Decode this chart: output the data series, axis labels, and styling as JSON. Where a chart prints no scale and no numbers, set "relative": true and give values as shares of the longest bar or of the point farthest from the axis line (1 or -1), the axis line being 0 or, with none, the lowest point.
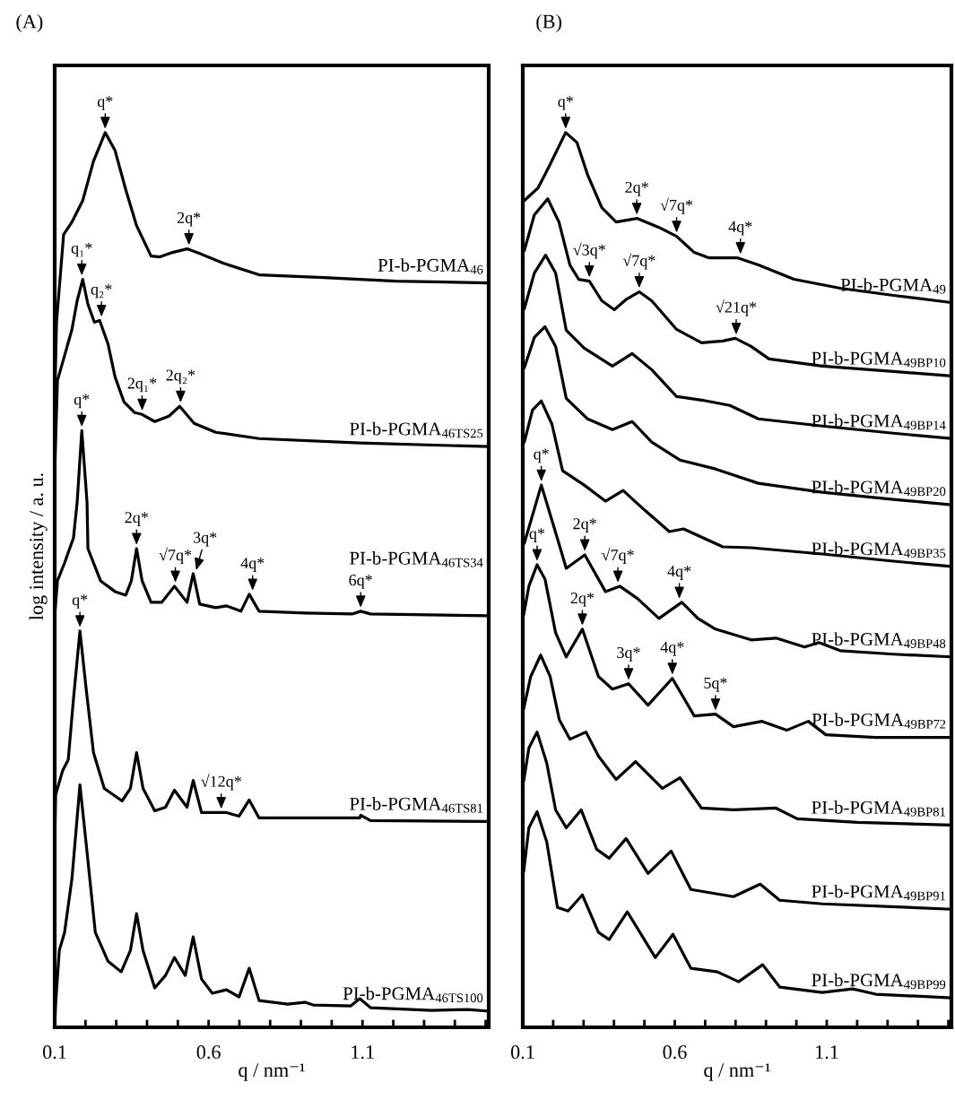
{
  "chart_data": [
    {
      "type": "line",
      "title": "(A)",
      "xlabel": "q / nm⁻¹",
      "ylabel": "log intensity / a. u.",
      "relative": true,
      "tick_labels": "x",
      "grid": false,
      "legend": false,
      "marker": "none",
      "line_style": "solid",
      "xlim": [
        0.1,
        1.51
      ],
      "xticks": [
        0.1,
        {
          "value": 0.2,
          "label": null
        },
        {
          "value": 0.3,
          "label": null
        },
        {
          "value": 0.4,
          "label": null
        },
        {
          "value": 0.5,
          "label": null
        },
        0.6,
        {
          "value": 0.7,
          "label": null
        },
        {
          "value": 0.8,
          "label": null
        },
        {
          "value": 0.9,
          "label": null
        },
        {
          "value": 1.0,
          "label": null
        },
        1.1,
        {
          "value": 1.2,
          "label": null
        },
        {
          "value": 1.3,
          "label": null
        },
        {
          "value": 1.4,
          "label": null
        },
        {
          "value": 1.5,
          "label": null
        }
      ],
      "series": [
        {
          "name": "PI-b-PGMA$_{46}$",
          "color": "#000000",
          "x": [
            0.1,
            0.106,
            0.129,
            0.156,
            0.191,
            0.226,
            0.264,
            0.296,
            0.331,
            0.366,
            0.413,
            0.442,
            0.483,
            0.53,
            0.577,
            0.647,
            0.764,
            0.974,
            1.208,
            1.51
          ],
          "values": [
            0.7,
            0.788,
            0.886,
            0.9,
            0.924,
            0.968,
            1.0,
            0.98,
            0.936,
            0.896,
            0.862,
            0.861,
            0.866,
            0.87,
            0.864,
            0.854,
            0.841,
            0.838,
            0.834,
            0.832
          ]
        },
        {
          "name": "PI-b-PGMA$_{46TS25}$",
          "color": "#000000",
          "x": [
            0.1,
            0.109,
            0.129,
            0.156,
            0.173,
            0.191,
            0.208,
            0.229,
            0.246,
            0.273,
            0.296,
            0.325,
            0.36,
            0.384,
            0.425,
            0.471,
            0.506,
            0.553,
            0.623,
            0.764,
            1.091,
            1.51
          ],
          "values": [
            0.62,
            0.723,
            0.747,
            0.78,
            0.812,
            0.836,
            0.808,
            0.788,
            0.79,
            0.764,
            0.727,
            0.699,
            0.687,
            0.685,
            0.677,
            0.683,
            0.694,
            0.675,
            0.665,
            0.658,
            0.653,
            0.649
          ]
        },
        {
          "name": "PI-b-PGMA$_{46TS34}$",
          "color": "#000000",
          "x": [
            0.1,
            0.109,
            0.132,
            0.161,
            0.173,
            0.188,
            0.205,
            0.208,
            0.249,
            0.296,
            0.331,
            0.349,
            0.366,
            0.384,
            0.413,
            0.448,
            0.489,
            0.53,
            0.55,
            0.571,
            0.623,
            0.658,
            0.705,
            0.732,
            0.764,
            0.916,
            1.068,
            1.094,
            1.126,
            1.51
          ],
          "values": [
            0.46,
            0.499,
            0.519,
            0.547,
            0.587,
            0.667,
            0.587,
            0.535,
            0.499,
            0.487,
            0.483,
            0.499,
            0.535,
            0.499,
            0.475,
            0.475,
            0.493,
            0.475,
            0.507,
            0.473,
            0.469,
            0.471,
            0.465,
            0.484,
            0.465,
            0.463,
            0.462,
            0.465,
            0.462,
            0.46
          ]
        },
        {
          "name": "PI-b-PGMA$_{46TS81}$",
          "color": "#000000",
          "x": [
            0.1,
            0.103,
            0.126,
            0.144,
            0.161,
            0.182,
            0.202,
            0.226,
            0.261,
            0.319,
            0.346,
            0.366,
            0.387,
            0.425,
            0.46,
            0.489,
            0.53,
            0.55,
            0.577,
            0.658,
            0.699,
            0.732,
            0.764,
            1.091,
            1.094,
            1.126,
            1.51
          ],
          "values": [
            0.2,
            0.26,
            0.287,
            0.299,
            0.367,
            0.443,
            0.379,
            0.307,
            0.267,
            0.253,
            0.267,
            0.307,
            0.267,
            0.242,
            0.246,
            0.265,
            0.246,
            0.276,
            0.24,
            0.24,
            0.236,
            0.254,
            0.234,
            0.234,
            0.237,
            0.231,
            0.23
          ]
        },
        {
          "name": "PI-b-PGMA$_{46TS100}$",
          "color": "#000000",
          "x": [
            0.1,
            0.103,
            0.115,
            0.132,
            0.156,
            0.182,
            0.202,
            0.232,
            0.273,
            0.316,
            0.346,
            0.366,
            0.387,
            0.425,
            0.46,
            0.489,
            0.524,
            0.55,
            0.577,
            0.612,
            0.658,
            0.699,
            0.732,
            0.764,
            0.857,
            0.913,
            0.939,
            1.062,
            1.091,
            1.126,
            1.325,
            1.442,
            1.51
          ],
          "values": [
            0.0,
            0.026,
            0.086,
            0.106,
            0.166,
            0.271,
            0.206,
            0.106,
            0.074,
            0.062,
            0.086,
            0.127,
            0.086,
            0.044,
            0.058,
            0.078,
            0.058,
            0.101,
            0.054,
            0.038,
            0.042,
            0.034,
            0.066,
            0.03,
            0.026,
            0.028,
            0.025,
            0.024,
            0.032,
            0.022,
            0.019,
            0.02,
            0.018
          ]
        }
      ],
      "annotations": [
        {
          "text": "q*",
          "x": 0.264,
          "y": 1.0
        },
        {
          "text": "2q*",
          "x": 0.536,
          "y": 0.87
        },
        {
          "text": "q₁*",
          "x": 0.188,
          "y": 0.836
        },
        {
          "text": "q₂*",
          "x": 0.252,
          "y": 0.79
        },
        {
          "text": "2q₁*",
          "x": 0.384,
          "y": 0.685
        },
        {
          "text": "2q₂*",
          "x": 0.509,
          "y": 0.694
        },
        {
          "text": "q*",
          "x": 0.188,
          "y": 0.667
        },
        {
          "text": "2q*",
          "x": 0.366,
          "y": 0.535
        },
        {
          "text": "√7q*",
          "x": 0.492,
          "y": 0.493
        },
        {
          "text": "3q*",
          "x": 0.556,
          "y": 0.507
        },
        {
          "text": "4q*",
          "x": 0.743,
          "y": 0.484
        },
        {
          "text": "6q*",
          "x": 1.094,
          "y": 0.465
        },
        {
          "text": "q*",
          "x": 0.182,
          "y": 0.443
        },
        {
          "text": "√12q*",
          "x": 0.641,
          "y": 0.24
        }
      ]
    },
    {
      "type": "line",
      "title": "(B)",
      "xlabel": "q / nm⁻¹",
      "relative": true,
      "tick_labels": "x",
      "grid": false,
      "legend": false,
      "marker": "none",
      "line_style": "solid",
      "xlim": [
        0.1,
        1.51
      ],
      "xticks": [
        0.1,
        {
          "value": 0.2,
          "label": null
        },
        {
          "value": 0.3,
          "label": null
        },
        {
          "value": 0.4,
          "label": null
        },
        {
          "value": 0.5,
          "label": null
        },
        0.6,
        {
          "value": 0.7,
          "label": null
        },
        {
          "value": 0.8,
          "label": null
        },
        {
          "value": 0.9,
          "label": null
        },
        {
          "value": 1.0,
          "label": null
        },
        1.1,
        {
          "value": 1.2,
          "label": null
        },
        {
          "value": 1.3,
          "label": null
        },
        {
          "value": 1.4,
          "label": null
        },
        {
          "value": 1.5,
          "label": null
        }
      ],
      "series": [
        {
          "name": "PI-b-PGMA$_{49}$",
          "color": "#000000",
          "x": [
            0.105,
            0.15,
            0.185,
            0.241,
            0.278,
            0.313,
            0.36,
            0.407,
            0.477,
            0.548,
            0.606,
            0.664,
            0.711,
            0.805,
            0.875,
            0.992,
            1.144,
            1.319,
            1.51
          ],
          "values": [
            0.924,
            0.938,
            0.961,
            1.0,
            0.989,
            0.953,
            0.916,
            0.9,
            0.904,
            0.894,
            0.884,
            0.866,
            0.86,
            0.86,
            0.852,
            0.836,
            0.826,
            0.818,
            0.81
          ]
        },
        {
          "name": "PI-b-PGMA$_{49BP10}$",
          "color": "#000000",
          "x": [
            0.105,
            0.138,
            0.182,
            0.219,
            0.255,
            0.284,
            0.319,
            0.36,
            0.401,
            0.442,
            0.483,
            0.524,
            0.606,
            0.688,
            0.758,
            0.799,
            0.851,
            0.91,
            1.085,
            1.319,
            1.51
          ],
          "values": [
            0.868,
            0.908,
            0.926,
            0.9,
            0.852,
            0.836,
            0.834,
            0.812,
            0.802,
            0.814,
            0.822,
            0.812,
            0.78,
            0.765,
            0.767,
            0.77,
            0.761,
            0.747,
            0.739,
            0.733,
            0.728
          ]
        },
        {
          "name": "PI-b-PGMA$_{49BP14}$",
          "color": "#000000",
          "x": [
            0.105,
            0.138,
            0.175,
            0.208,
            0.243,
            0.302,
            0.395,
            0.46,
            0.524,
            0.606,
            0.688,
            0.781,
            0.875,
            1.085,
            1.319,
            1.51
          ],
          "values": [
            0.803,
            0.843,
            0.863,
            0.843,
            0.779,
            0.759,
            0.739,
            0.753,
            0.735,
            0.705,
            0.701,
            0.695,
            0.68,
            0.672,
            0.664,
            0.658
          ]
        },
        {
          "name": "PI-b-PGMA$_{49BP20}$",
          "color": "#000000",
          "x": [
            0.105,
            0.138,
            0.173,
            0.208,
            0.243,
            0.313,
            0.395,
            0.46,
            0.524,
            0.617,
            0.734,
            0.875,
            1.085,
            1.319,
            1.51
          ],
          "values": [
            0.737,
            0.771,
            0.783,
            0.761,
            0.703,
            0.68,
            0.668,
            0.677,
            0.654,
            0.634,
            0.624,
            0.608,
            0.598,
            0.59,
            0.584
          ]
        },
        {
          "name": "PI-b-PGMA$_{49BP35}$",
          "color": "#000000",
          "x": [
            0.105,
            0.132,
            0.161,
            0.196,
            0.231,
            0.302,
            0.372,
            0.43,
            0.501,
            0.582,
            0.629,
            0.758,
            0.851,
            1.085,
            1.319,
            1.51
          ],
          "values": [
            0.654,
            0.69,
            0.7,
            0.674,
            0.622,
            0.606,
            0.588,
            0.6,
            0.578,
            0.554,
            0.557,
            0.537,
            0.536,
            0.529,
            0.521,
            0.515
          ]
        },
        {
          "name": "PI-b-PGMA$_{49BP48}$",
          "color": "#000000",
          "x": [
            0.105,
            0.161,
            0.208,
            0.243,
            0.304,
            0.372,
            0.419,
            0.478,
            0.548,
            0.623,
            0.676,
            0.734,
            0.851,
            0.933,
            1.027,
            1.074,
            1.144,
            1.319,
            1.51
          ],
          "values": [
            0.541,
            0.606,
            0.553,
            0.513,
            0.528,
            0.487,
            0.493,
            0.479,
            0.457,
            0.475,
            0.457,
            0.445,
            0.433,
            0.435,
            0.425,
            0.43,
            0.421,
            0.417,
            0.414
          ]
        },
        {
          "name": "PI-b-PGMA$_{49BP72}$",
          "color": "#000000",
          "x": [
            0.103,
            0.12,
            0.147,
            0.173,
            0.208,
            0.243,
            0.296,
            0.349,
            0.395,
            0.448,
            0.512,
            0.592,
            0.664,
            0.734,
            0.793,
            0.887,
            0.968,
            1.039,
            1.097,
            1.261,
            1.51
          ],
          "values": [
            0.461,
            0.493,
            0.517,
            0.501,
            0.441,
            0.414,
            0.445,
            0.392,
            0.378,
            0.384,
            0.36,
            0.39,
            0.348,
            0.35,
            0.336,
            0.342,
            0.332,
            0.342,
            0.327,
            0.324,
            0.324
          ]
        },
        {
          "name": "PI-b-PGMA$_{49BP81}$",
          "color": "#000000",
          "x": [
            0.103,
            0.126,
            0.159,
            0.19,
            0.22,
            0.255,
            0.308,
            0.349,
            0.407,
            0.471,
            0.559,
            0.617,
            0.688,
            0.793,
            0.933,
            1.003,
            1.202,
            1.51
          ],
          "values": [
            0.356,
            0.392,
            0.416,
            0.392,
            0.344,
            0.322,
            0.33,
            0.303,
            0.277,
            0.297,
            0.267,
            0.279,
            0.245,
            0.243,
            0.245,
            0.233,
            0.229,
            0.226
          ]
        },
        {
          "name": "PI-b-PGMA$_{49BP91}$",
          "color": "#000000",
          "x": [
            0.103,
            0.12,
            0.147,
            0.179,
            0.208,
            0.243,
            0.292,
            0.343,
            0.384,
            0.44,
            0.512,
            0.588,
            0.653,
            0.793,
            0.881,
            0.945,
            1.085,
            1.51
          ],
          "values": [
            0.275,
            0.312,
            0.33,
            0.295,
            0.243,
            0.223,
            0.243,
            0.199,
            0.189,
            0.211,
            0.172,
            0.197,
            0.154,
            0.146,
            0.16,
            0.142,
            0.138,
            0.132
          ]
        },
        {
          "name": "PI-b-PGMA$_{49BP99}$",
          "color": "#000000",
          "x": [
            0.103,
            0.12,
            0.147,
            0.179,
            0.214,
            0.249,
            0.296,
            0.349,
            0.384,
            0.444,
            0.536,
            0.594,
            0.653,
            0.74,
            0.81,
            0.889,
            0.945,
            1.085,
            1.185,
            1.261,
            1.51
          ],
          "values": [
            0.174,
            0.223,
            0.241,
            0.207,
            0.134,
            0.13,
            0.148,
            0.106,
            0.098,
            0.129,
            0.078,
            0.104,
            0.066,
            0.062,
            0.051,
            0.07,
            0.045,
            0.039,
            0.043,
            0.037,
            0.033
          ]
        }
      ],
      "annotations": [
        {
          "text": "q*",
          "x": 0.241,
          "y": 1.0
        },
        {
          "text": "2q*",
          "x": 0.475,
          "y": 0.904
        },
        {
          "text": "√7q*",
          "x": 0.606,
          "y": 0.884
        },
        {
          "text": "4q*",
          "x": 0.816,
          "y": 0.86
        },
        {
          "text": "√3q*",
          "x": 0.319,
          "y": 0.834
        },
        {
          "text": "√7q*",
          "x": 0.483,
          "y": 0.822
        },
        {
          "text": "√21q*",
          "x": 0.802,
          "y": 0.77
        },
        {
          "text": "q*",
          "x": 0.161,
          "y": 0.606
        },
        {
          "text": "2q*",
          "x": 0.304,
          "y": 0.528
        },
        {
          "text": "√7q*",
          "x": 0.413,
          "y": 0.493
        },
        {
          "text": "4q*",
          "x": 0.615,
          "y": 0.475
        },
        {
          "text": "q*",
          "x": 0.147,
          "y": 0.517
        },
        {
          "text": "2q*",
          "x": 0.296,
          "y": 0.445
        },
        {
          "text": "3q*",
          "x": 0.448,
          "y": 0.384
        },
        {
          "text": "4q*",
          "x": 0.592,
          "y": 0.39
        },
        {
          "text": "5q*",
          "x": 0.734,
          "y": 0.35
        }
      ]
    }
  ]
}
